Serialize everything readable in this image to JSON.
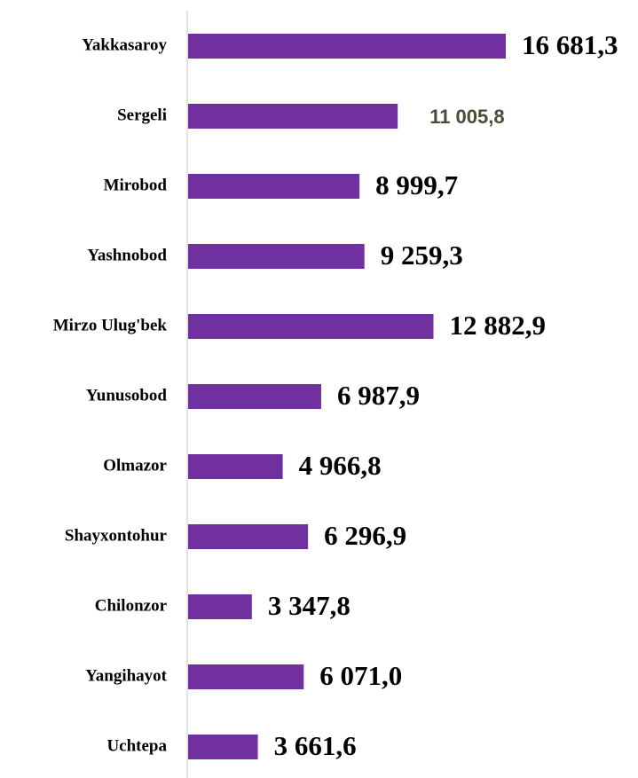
{
  "chart_data": {
    "type": "bar",
    "orientation": "horizontal",
    "categories": [
      "Yakkasaroy",
      "Sergeli",
      "Mirobod",
      "Yashnobod",
      "Mirzo Ulug'bek",
      "Yunusobod",
      "Olmazor",
      "Shayxontohur",
      "Chilonzor",
      "Yangihayot",
      "Uchtepa"
    ],
    "values": [
      16681.3,
      11005.8,
      8999.7,
      9259.3,
      12882.9,
      6987.9,
      4966.8,
      6296.9,
      3347.8,
      6071.0,
      3661.6
    ],
    "value_labels": [
      "16 681,3",
      "11 005,8",
      "8 999,7",
      "9 259,3",
      "12 882,9",
      "6 987,9",
      "4 966,8",
      "6 296,9",
      "3 347,8",
      "6 071,0",
      "3 661,6"
    ],
    "color": "#7030a0"
  }
}
